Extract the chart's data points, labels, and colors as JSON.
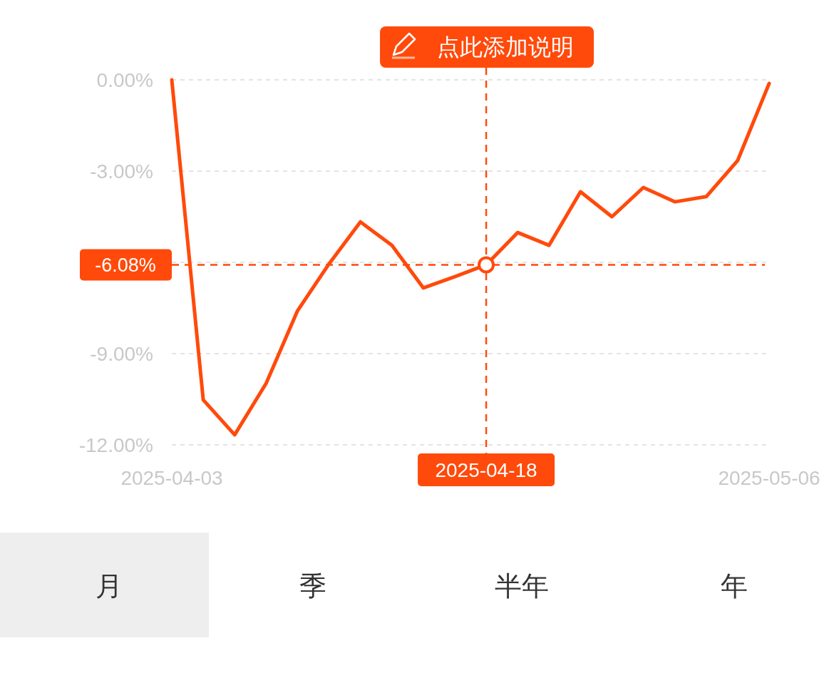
{
  "chart_data": {
    "type": "line",
    "categories": [
      "2025-04-03",
      null,
      null,
      null,
      null,
      null,
      null,
      null,
      null,
      null,
      "2025-04-18",
      null,
      null,
      null,
      null,
      null,
      null,
      null,
      null,
      "2025-05-06"
    ],
    "series": [
      {
        "color": "#ff4a0b",
        "values": [
          0.0,
          -10.52,
          -11.67,
          -9.98,
          -7.59,
          -6.05,
          -4.67,
          -5.44,
          -6.84,
          -6.47,
          -6.08,
          -5.02,
          -5.44,
          -3.68,
          -4.5,
          -3.54,
          -4.01,
          -3.84,
          -2.65,
          -0.12
        ]
      }
    ],
    "ylim": [
      -12,
      0
    ],
    "yticks": [
      {
        "value": 0,
        "label": "0.00%"
      },
      {
        "value": -3,
        "label": "-3.00%"
      },
      {
        "value": -6,
        "label": null
      },
      {
        "value": -9,
        "label": "-9.00%"
      },
      {
        "value": -12,
        "label": "-12.00%"
      }
    ],
    "grid": "y",
    "marker": "none",
    "line_style": "solid",
    "ref_lines": [
      {
        "axis": "x",
        "value": "2025-04-18",
        "color": "#ff4a0b",
        "line_style": "dashed"
      },
      {
        "axis": "y",
        "value": -6.08,
        "label": "-6.08%",
        "color": "#ff4a0b",
        "line_style": "dashed"
      }
    ],
    "annotations": [
      "点此添加说明",
      "月",
      "季",
      "半年",
      "年"
    ]
  }
}
